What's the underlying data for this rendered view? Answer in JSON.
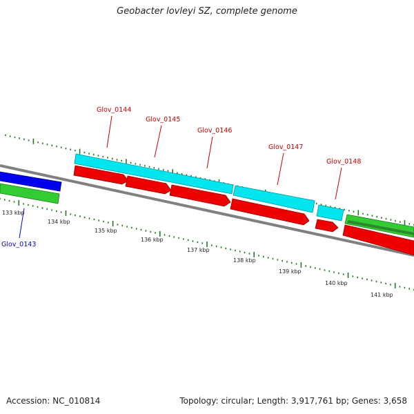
{
  "title": "Geobacter lovleyi SZ, complete genome",
  "footer": {
    "accession": "Accession: NC_010814",
    "stats": "Topology: circular; Length: 3,917,761 bp; Genes: 3,658"
  },
  "colors": {
    "background": "#ffffff",
    "backbone": "#808080",
    "tick": "#1f7a1f",
    "cyan_feature": "#00e5ee",
    "red_feature": "#ee0000",
    "blue_feature": "#0000ee",
    "green_feature": "#33cc33",
    "label_red": "#cc0000",
    "label_blue": "#0000cc"
  },
  "scale": {
    "ticks": [
      {
        "label": "133 kbp"
      },
      {
        "label": "134 kbp"
      },
      {
        "label": "135 kbp"
      },
      {
        "label": "136 kbp"
      },
      {
        "label": "137 kbp"
      },
      {
        "label": "138 kbp"
      },
      {
        "label": "139 kbp"
      },
      {
        "label": "140 kbp"
      },
      {
        "label": "141 kbp"
      }
    ]
  },
  "genes": {
    "glov_0143": {
      "label": "Glov_0143"
    },
    "glov_0144": {
      "label": "Glov_0144"
    },
    "glov_0145": {
      "label": "Glov_0145"
    },
    "glov_0146": {
      "label": "Glov_0146"
    },
    "glov_0147": {
      "label": "Glov_0147"
    },
    "glov_0148": {
      "label": "Glov_0148"
    }
  }
}
